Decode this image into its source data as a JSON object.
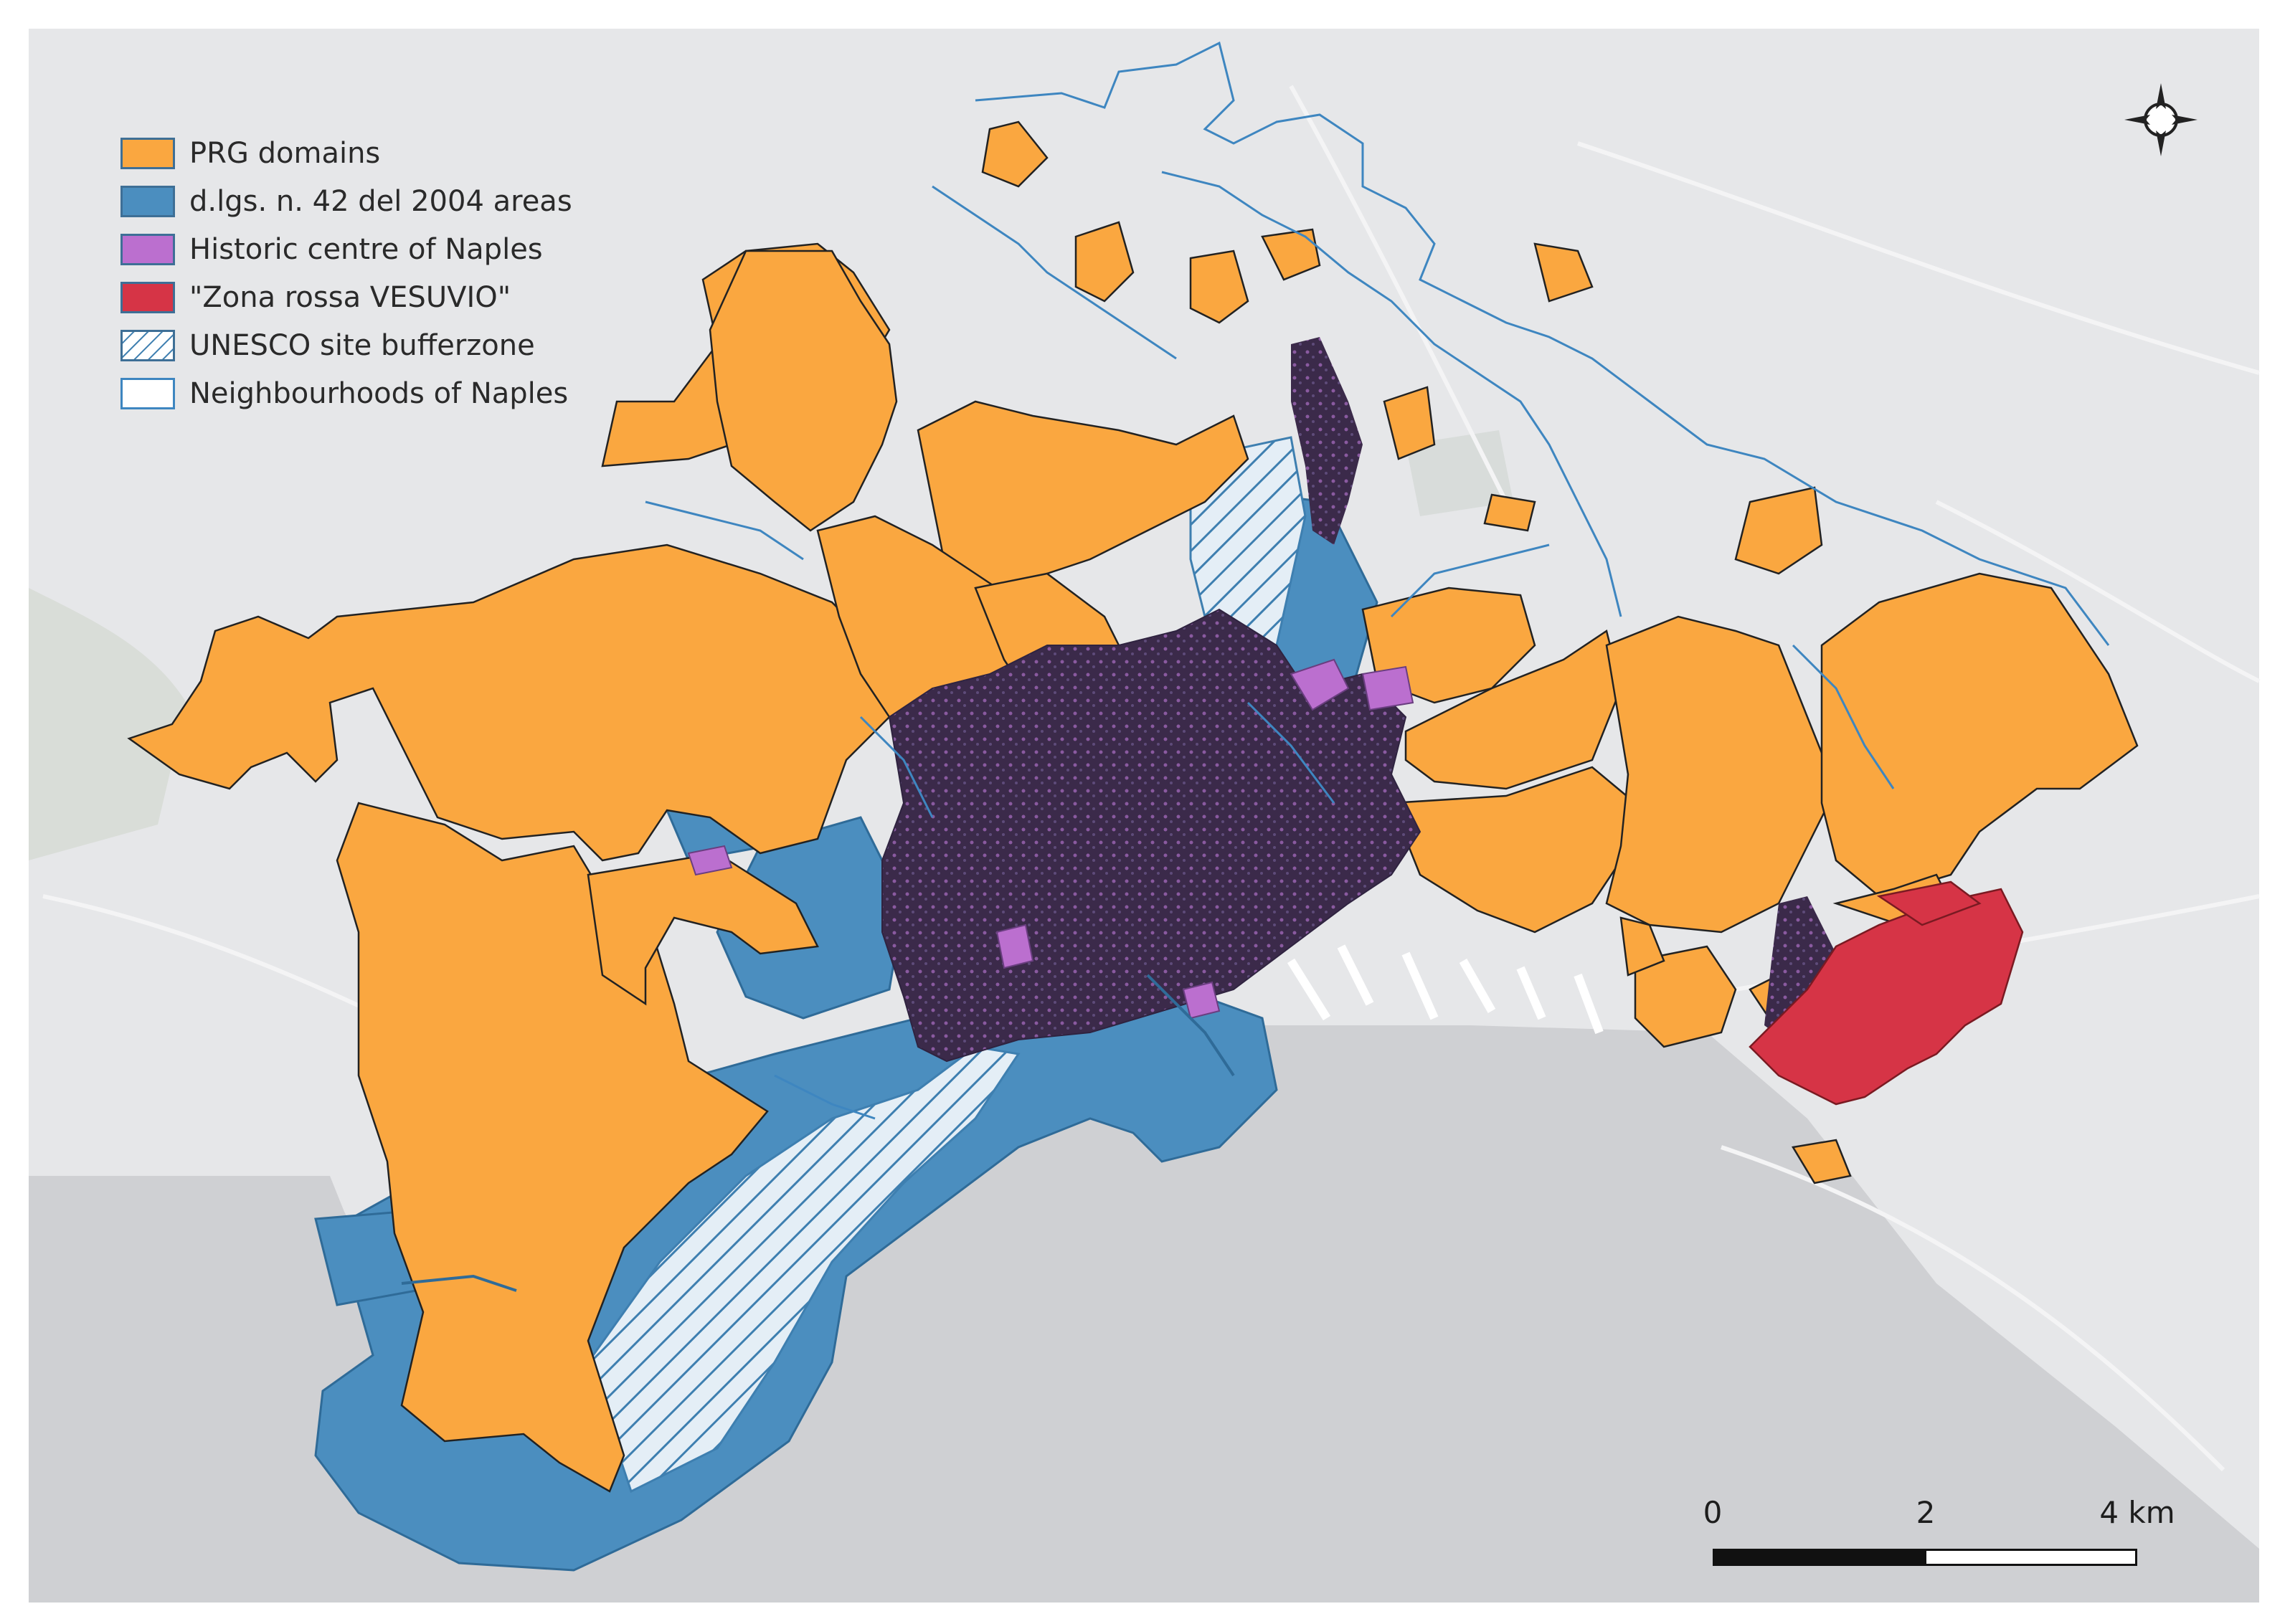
{
  "colors": {
    "background": "#e6e7e9",
    "sea": "#cfd0d3",
    "prg": "#faa740",
    "dlgs": "#4b8ebf",
    "historic": "#bb6fcf",
    "zona_rossa": "#d63446",
    "unesco_stroke": "#3e7fb0",
    "neighbourhood": "#3e86c0",
    "dense_urban": "#3b2a4a"
  },
  "legend": [
    {
      "key": "prg",
      "label": "PRG domains"
    },
    {
      "key": "dlgs",
      "label": "d.lgs. n. 42 del 2004 areas"
    },
    {
      "key": "historic",
      "label": "Historic centre of Naples"
    },
    {
      "key": "zona_rossa",
      "label": "\"Zona rossa VESUVIO\""
    },
    {
      "key": "unesco",
      "label": "UNESCO site bufferzone"
    },
    {
      "key": "neighbourhood",
      "label": "Neighbourhoods of Naples"
    }
  ],
  "scale_bar": {
    "labels": [
      "0",
      "2",
      "4 km"
    ]
  },
  "north_arrow": {
    "icon": "compass-rose-icon"
  }
}
